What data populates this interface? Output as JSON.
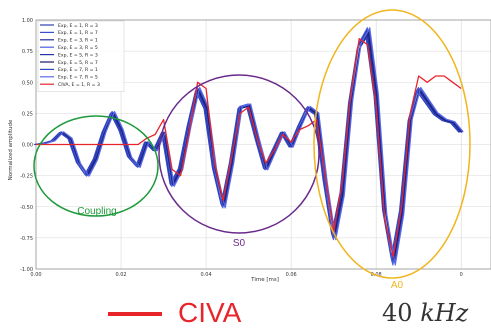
{
  "chart_data": {
    "type": "line",
    "xlabel": "Time [ms]",
    "ylabel": "Normalized amplitude",
    "xlim": [
      0,
      0.1
    ],
    "ylim": [
      -1.0,
      1.0
    ],
    "xticks": [
      "0.00",
      "0.02",
      "0.04",
      "0.06",
      "0.08",
      "0"
    ],
    "yticks": [
      "1.00",
      "0.75",
      "0.50",
      "0.25",
      "0.00",
      "-0.25",
      "-0.50",
      "-0.75",
      "-1.00"
    ],
    "grid": true,
    "legend_position": "top-left",
    "series": [
      {
        "name": "Exp, E = 1, R = 3",
        "color": "#2b3fb8"
      },
      {
        "name": "Exp, E = 1, R = 7",
        "color": "#3a4fd0"
      },
      {
        "name": "Exp, E = 3, R = 1",
        "color": "#1f2e9a"
      },
      {
        "name": "Exp, E = 3, R = 5",
        "color": "#4a5ee0"
      },
      {
        "name": "Exp, E = 5, R = 3",
        "color": "#2536a8"
      },
      {
        "name": "Exp, E = 5, R = 7",
        "color": "#1a1a66"
      },
      {
        "name": "Exp, E = 7, R = 1",
        "color": "#3347c4"
      },
      {
        "name": "Exp, E = 7, R = 5",
        "color": "#5a6ae8"
      },
      {
        "name": "CIVA, E = 1, R = 3",
        "color": "#e8242b"
      }
    ],
    "curve": {
      "x": [
        0,
        0.002,
        0.004,
        0.006,
        0.008,
        0.01,
        0.012,
        0.014,
        0.016,
        0.018,
        0.02,
        0.022,
        0.024,
        0.026,
        0.028,
        0.03,
        0.032,
        0.034,
        0.036,
        0.038,
        0.04,
        0.042,
        0.044,
        0.046,
        0.048,
        0.05,
        0.052,
        0.054,
        0.056,
        0.058,
        0.06,
        0.062,
        0.064,
        0.066,
        0.068,
        0.07,
        0.072,
        0.074,
        0.076,
        0.078,
        0.08,
        0.082,
        0.084,
        0.086,
        0.088,
        0.09,
        0.092,
        0.094,
        0.096,
        0.098,
        0.1
      ],
      "exp_y": [
        0,
        0.01,
        0.03,
        0.1,
        0.05,
        -0.15,
        -0.25,
        -0.12,
        0.1,
        0.26,
        0.12,
        -0.1,
        -0.18,
        0.02,
        -0.05,
        0.1,
        -0.33,
        -0.2,
        0.15,
        0.45,
        0.3,
        -0.2,
        -0.5,
        -0.15,
        0.3,
        0.32,
        0.05,
        -0.2,
        -0.05,
        0.1,
        -0.02,
        0.15,
        0.3,
        0.25,
        -0.3,
        -0.75,
        -0.4,
        0.35,
        0.8,
        0.92,
        0.4,
        -0.55,
        -0.95,
        -0.55,
        0.2,
        0.45,
        0.35,
        0.25,
        0.2,
        0.18,
        0.1
      ],
      "civa_y": [
        0,
        0,
        0,
        0,
        0,
        0,
        0,
        0,
        0,
        0,
        0,
        0,
        0,
        0.05,
        0.08,
        0.2,
        -0.2,
        -0.25,
        0.1,
        0.5,
        0.45,
        -0.15,
        -0.45,
        -0.1,
        0.25,
        0.3,
        0.05,
        -0.15,
        -0.05,
        0.08,
        0.02,
        0.12,
        0.15,
        0.2,
        -0.25,
        -0.7,
        -0.3,
        0.4,
        0.85,
        0.8,
        0.3,
        -0.6,
        -0.9,
        -0.5,
        0.25,
        0.55,
        0.5,
        0.55,
        0.55,
        0.5,
        0.45
      ]
    },
    "annotations": [
      {
        "label": "Coupling",
        "color": "#1e9a3c"
      },
      {
        "label": "S0",
        "color": "#6a2a8c"
      },
      {
        "label": "A0",
        "color": "#f0b51e"
      }
    ]
  },
  "bottom_legend": {
    "label": "CIVA",
    "color": "#e8242b",
    "frequency_value": "40",
    "frequency_unit": "kHz"
  }
}
